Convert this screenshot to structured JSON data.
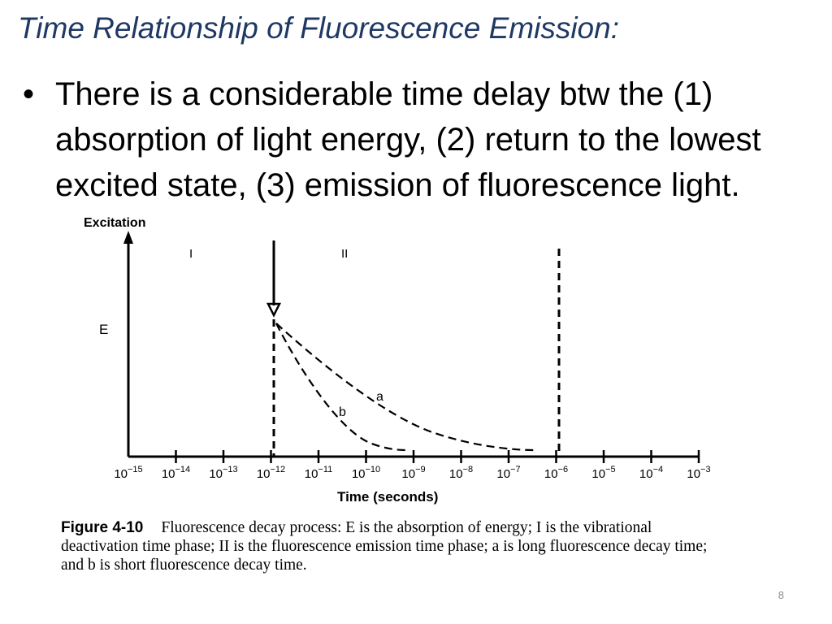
{
  "slide": {
    "title": "Time Relationship of Fluorescence Emission:",
    "bullet": "There is a considerable time delay btw the (1) absorption of light energy, (2) return to the lowest excited state, (3) emission of fluorescence light.",
    "page_number": "8"
  },
  "figure": {
    "y_axis_label": "Excitation",
    "energy_label": "E",
    "phase_1_label": "I",
    "phase_2_label": "II",
    "curve_a_label": "a",
    "curve_b_label": "b",
    "x_axis_label": "Time (seconds)",
    "x_ticks": [
      {
        "base": "10",
        "exp": "−15"
      },
      {
        "base": "10",
        "exp": "−14"
      },
      {
        "base": "10",
        "exp": "−13"
      },
      {
        "base": "10",
        "exp": "−12"
      },
      {
        "base": "10",
        "exp": "−11"
      },
      {
        "base": "10",
        "exp": "−10"
      },
      {
        "base": "10",
        "exp": "−9"
      },
      {
        "base": "10",
        "exp": "−8"
      },
      {
        "base": "10",
        "exp": "−7"
      },
      {
        "base": "10",
        "exp": "−6"
      },
      {
        "base": "10",
        "exp": "−5"
      },
      {
        "base": "10",
        "exp": "−4"
      },
      {
        "base": "10",
        "exp": "−3"
      }
    ]
  },
  "caption": {
    "label": "Figure 4-10",
    "text": "Fluorescence decay process: E is the absorption of energy; I is the vibrational deactivation time phase; II is the fluorescence emission time phase; a is long fluorescence decay time; and b is short fluorescence decay time."
  }
}
